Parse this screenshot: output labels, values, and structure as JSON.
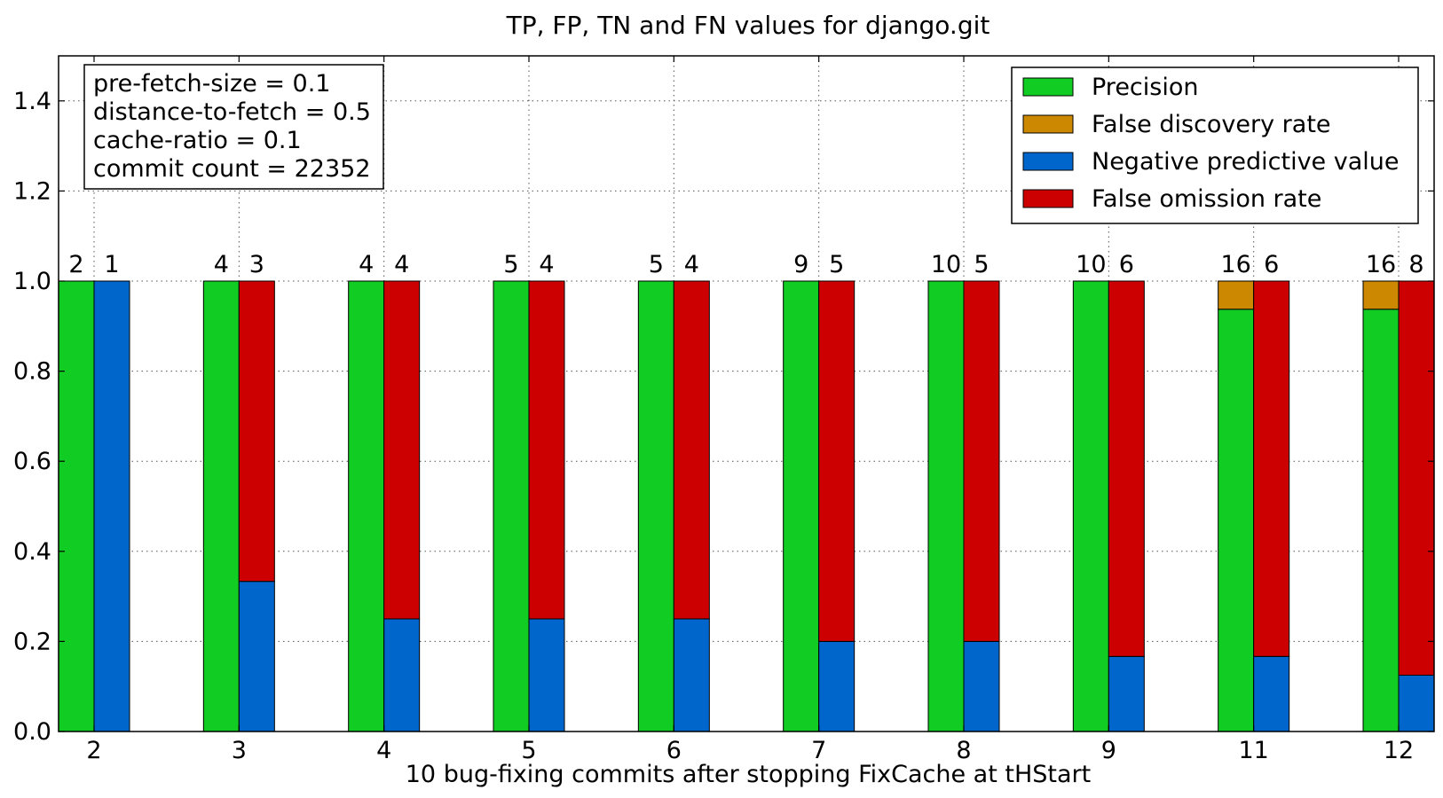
{
  "colors": {
    "precision": "#11cc22",
    "fdr": "#cc8800",
    "npv": "#0066cc",
    "for": "#cc0000"
  },
  "chart_data": {
    "type": "bar",
    "title": "TP, FP, TN and FN values for django.git",
    "xlabel": "10 bug-fixing commits after stopping FixCache at tHStart",
    "ylabel": "",
    "ylim": [
      0,
      1.5
    ],
    "yticks": [
      "0.0",
      "0.2",
      "0.4",
      "0.6",
      "0.8",
      "1.0",
      "1.2",
      "1.4"
    ],
    "grid": true,
    "legend_position": "top-right",
    "categories": [
      "2",
      "3",
      "4",
      "5",
      "6",
      "7",
      "8",
      "9",
      "11",
      "12"
    ],
    "series": [
      {
        "name": "Precision",
        "stack": "left",
        "values": [
          1.0,
          1.0,
          1.0,
          1.0,
          1.0,
          1.0,
          1.0,
          1.0,
          0.9375,
          0.9375
        ]
      },
      {
        "name": "False discovery rate",
        "stack": "left",
        "values": [
          0.0,
          0.0,
          0.0,
          0.0,
          0.0,
          0.0,
          0.0,
          0.0,
          0.0625,
          0.0625
        ]
      },
      {
        "name": "Negative predictive value",
        "stack": "right",
        "values": [
          1.0,
          0.3333,
          0.25,
          0.25,
          0.25,
          0.2,
          0.2,
          0.1667,
          0.1667,
          0.125
        ]
      },
      {
        "name": "False omission rate",
        "stack": "right",
        "values": [
          0.0,
          0.6667,
          0.75,
          0.75,
          0.75,
          0.8,
          0.8,
          0.8333,
          0.8333,
          0.875
        ]
      }
    ],
    "left_labels": [
      "2",
      "4",
      "4",
      "5",
      "5",
      "9",
      "10",
      "10",
      "16",
      "16"
    ],
    "right_labels": [
      "1",
      "3",
      "4",
      "4",
      "4",
      "5",
      "5",
      "6",
      "6",
      "8"
    ],
    "info_box": [
      "pre-fetch-size = 0.1",
      "distance-to-fetch = 0.5",
      "cache-ratio = 0.1",
      "commit count = 22352"
    ]
  }
}
